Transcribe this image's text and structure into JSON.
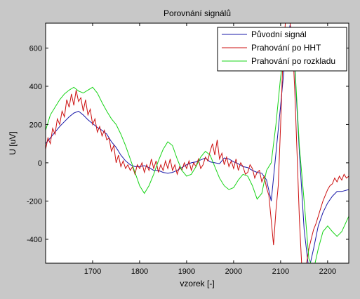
{
  "window": {
    "background": "#c8c8c8"
  },
  "chart_data": {
    "type": "line",
    "title": "Porovnání signálů",
    "xlabel": "vzorek [-]",
    "ylabel": "U [uV]",
    "xlim": [
      1600,
      2245
    ],
    "ylim": [
      -525,
      730
    ],
    "xticks": [
      1700,
      1800,
      1900,
      2000,
      2100,
      2200
    ],
    "yticks": [
      -400,
      -200,
      0,
      200,
      400,
      600
    ],
    "grid": false,
    "legend_position": "top-right",
    "series": [
      {
        "name": "Původní signál",
        "color": "#1818a8",
        "x": [
          1600,
          1610,
          1620,
          1630,
          1640,
          1650,
          1660,
          1670,
          1680,
          1690,
          1700,
          1710,
          1720,
          1730,
          1740,
          1750,
          1760,
          1770,
          1780,
          1790,
          1800,
          1810,
          1820,
          1830,
          1840,
          1850,
          1860,
          1870,
          1880,
          1890,
          1900,
          1910,
          1920,
          1930,
          1940,
          1950,
          1960,
          1970,
          1980,
          1990,
          2000,
          2010,
          2020,
          2030,
          2040,
          2050,
          2060,
          2070,
          2080,
          2090,
          2100,
          2110,
          2120,
          2130,
          2140,
          2150,
          2160,
          2170,
          2180,
          2190,
          2200,
          2210,
          2220,
          2230,
          2245
        ],
        "y": [
          100,
          130,
          160,
          190,
          215,
          240,
          260,
          270,
          250,
          225,
          205,
          185,
          170,
          150,
          110,
          80,
          40,
          10,
          -10,
          -20,
          -20,
          -15,
          -25,
          -40,
          -40,
          -50,
          -55,
          -50,
          -40,
          -25,
          -10,
          0,
          5,
          15,
          25,
          5,
          0,
          -5,
          25,
          20,
          5,
          -5,
          -20,
          -25,
          -40,
          -50,
          -55,
          -90,
          -200,
          50,
          300,
          560,
          720,
          500,
          50,
          -350,
          -560,
          -450,
          -330,
          -260,
          -210,
          -175,
          -150,
          -150,
          -140
        ]
      },
      {
        "name": "Prahování po HHT",
        "color": "#cc1010",
        "x": [
          1600,
          1605,
          1610,
          1615,
          1620,
          1625,
          1630,
          1635,
          1640,
          1645,
          1650,
          1655,
          1660,
          1665,
          1670,
          1675,
          1680,
          1685,
          1690,
          1695,
          1700,
          1705,
          1710,
          1715,
          1720,
          1725,
          1730,
          1735,
          1740,
          1745,
          1750,
          1755,
          1760,
          1765,
          1770,
          1775,
          1780,
          1785,
          1790,
          1795,
          1800,
          1805,
          1810,
          1815,
          1820,
          1825,
          1830,
          1835,
          1840,
          1845,
          1850,
          1855,
          1860,
          1865,
          1870,
          1875,
          1880,
          1885,
          1890,
          1895,
          1900,
          1905,
          1910,
          1915,
          1920,
          1925,
          1930,
          1935,
          1940,
          1945,
          1950,
          1955,
          1960,
          1965,
          1970,
          1975,
          1980,
          1985,
          1990,
          1995,
          2000,
          2005,
          2010,
          2015,
          2020,
          2025,
          2030,
          2035,
          2040,
          2045,
          2050,
          2055,
          2060,
          2065,
          2070,
          2075,
          2080,
          2085,
          2090,
          2095,
          2100,
          2105,
          2110,
          2115,
          2120,
          2125,
          2130,
          2135,
          2140,
          2145,
          2150,
          2155,
          2160,
          2165,
          2170,
          2175,
          2180,
          2185,
          2190,
          2195,
          2200,
          2205,
          2210,
          2215,
          2220,
          2225,
          2230,
          2235,
          2240,
          2245
        ],
        "y": [
          70,
          130,
          100,
          180,
          150,
          230,
          200,
          270,
          240,
          330,
          290,
          360,
          300,
          380,
          320,
          340,
          270,
          330,
          250,
          280,
          200,
          230,
          160,
          190,
          140,
          170,
          120,
          130,
          60,
          90,
          0,
          40,
          -20,
          10,
          -30,
          -10,
          -40,
          -20,
          -60,
          -10,
          -30,
          0,
          -50,
          -10,
          -40,
          20,
          -30,
          10,
          -50,
          -10,
          -40,
          10,
          -30,
          20,
          -40,
          -10,
          -60,
          -20,
          -40,
          0,
          -30,
          10,
          -40,
          0,
          -20,
          20,
          -30,
          -10,
          30,
          10,
          60,
          100,
          40,
          120,
          20,
          50,
          -10,
          30,
          -20,
          10,
          -30,
          20,
          -40,
          0,
          -20,
          -60,
          -50,
          -10,
          -30,
          -80,
          -50,
          -40,
          -100,
          -70,
          -130,
          -170,
          -300,
          -430,
          -250,
          -120,
          200,
          550,
          730,
          730,
          730,
          650,
          380,
          50,
          -300,
          -540,
          -560,
          -530,
          -450,
          -400,
          -350,
          -320,
          -280,
          -240,
          -200,
          -170,
          -140,
          -120,
          -110,
          -80,
          -100,
          -70,
          -90,
          -60,
          -80,
          -70
        ]
      },
      {
        "name": "Prahování po rozkladu",
        "color": "#18d418",
        "x": [
          1600,
          1610,
          1620,
          1630,
          1640,
          1650,
          1660,
          1670,
          1680,
          1690,
          1700,
          1710,
          1720,
          1730,
          1740,
          1750,
          1760,
          1770,
          1780,
          1790,
          1800,
          1810,
          1820,
          1830,
          1840,
          1850,
          1860,
          1870,
          1880,
          1890,
          1900,
          1910,
          1920,
          1930,
          1940,
          1950,
          1960,
          1970,
          1980,
          1990,
          2000,
          2010,
          2020,
          2030,
          2040,
          2050,
          2060,
          2070,
          2080,
          2090,
          2100,
          2110,
          2120,
          2130,
          2140,
          2150,
          2160,
          2170,
          2180,
          2190,
          2200,
          2210,
          2220,
          2230,
          2245
        ],
        "y": [
          170,
          250,
          290,
          330,
          360,
          380,
          395,
          375,
          365,
          380,
          395,
          365,
          315,
          270,
          230,
          200,
          150,
          90,
          20,
          -50,
          -120,
          -160,
          -120,
          -60,
          10,
          70,
          110,
          90,
          20,
          -40,
          -70,
          -60,
          -20,
          30,
          60,
          40,
          -20,
          -80,
          -120,
          -140,
          -130,
          -90,
          -60,
          -70,
          -120,
          -190,
          -160,
          -40,
          0,
          200,
          450,
          620,
          700,
          520,
          80,
          -200,
          -500,
          -560,
          -450,
          -360,
          -330,
          -360,
          -385,
          -360,
          -280
        ]
      }
    ]
  }
}
